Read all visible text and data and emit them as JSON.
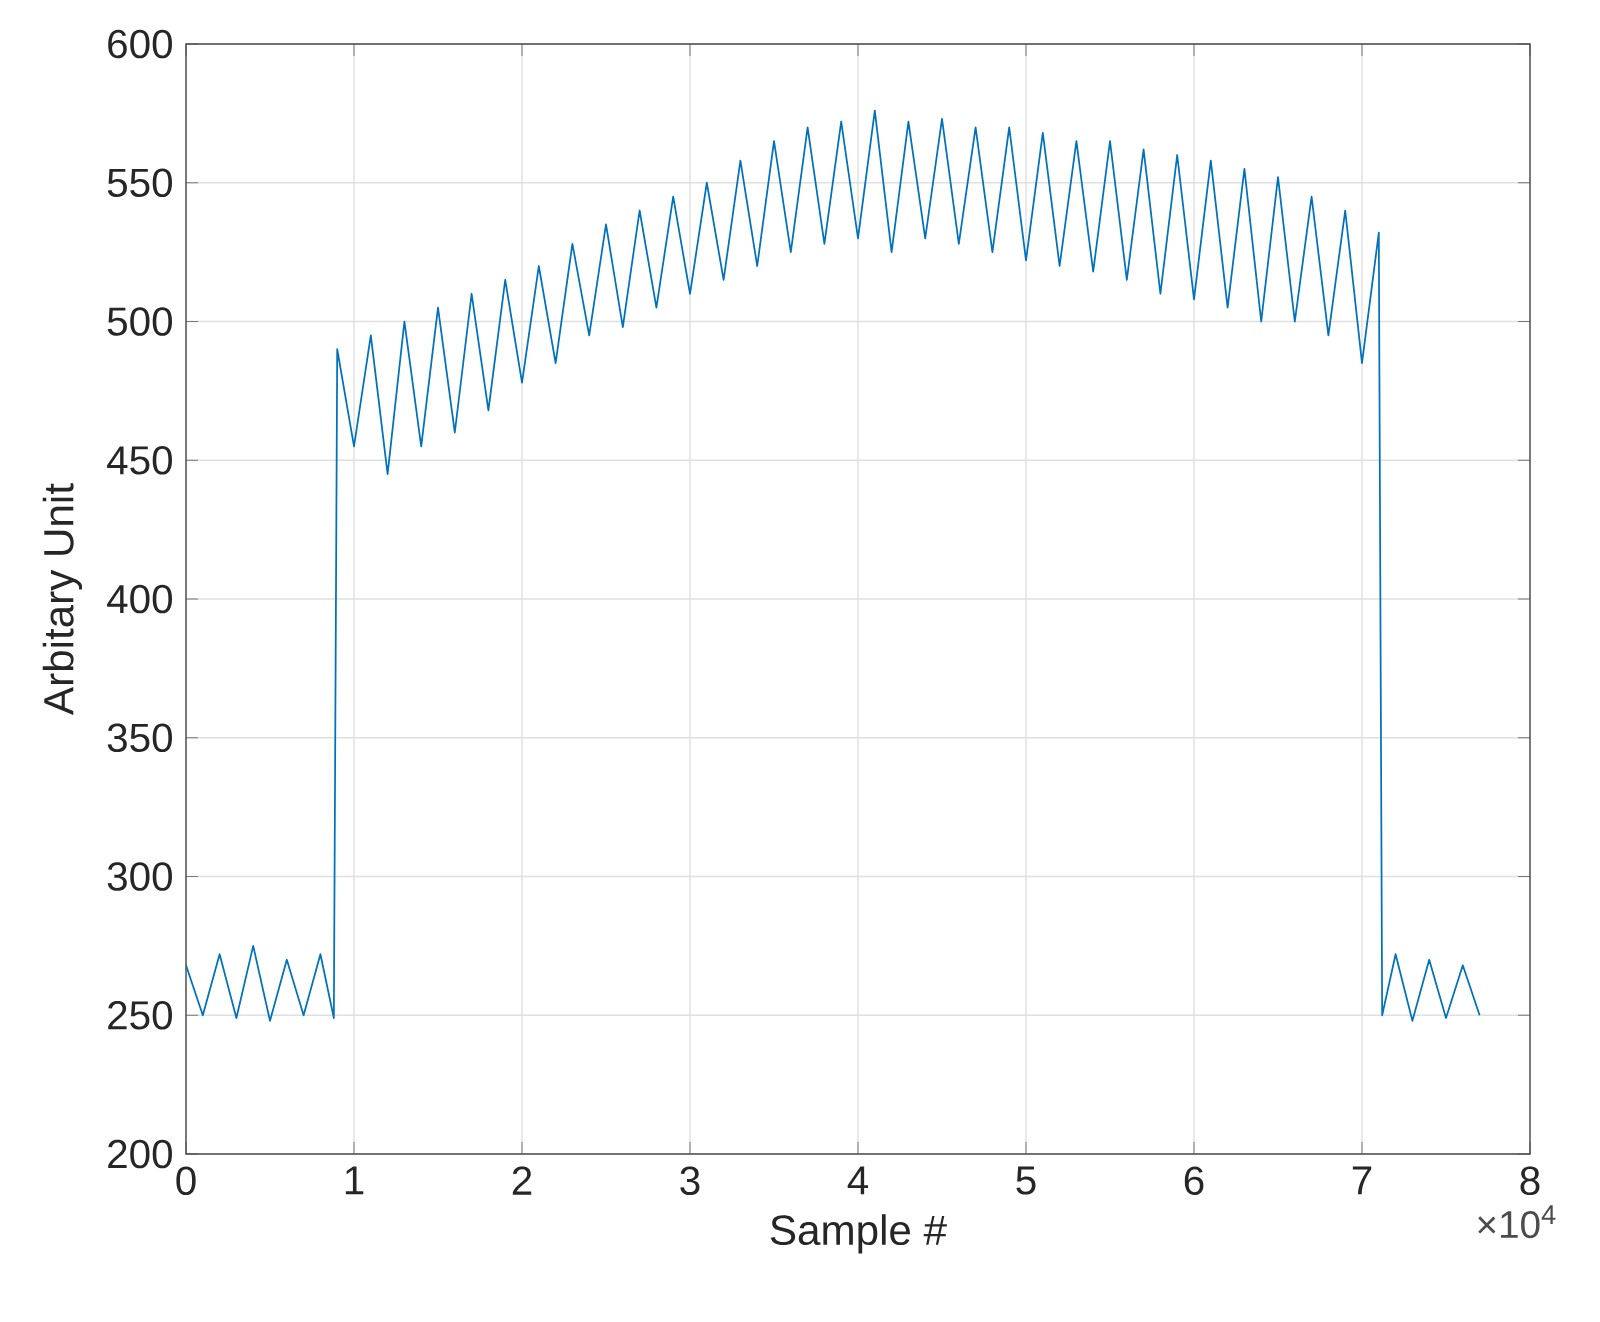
{
  "chart_data": {
    "type": "line",
    "xlabel": "Sample #",
    "ylabel": "Arbitary Unit",
    "annotations": [
      "×10$^{4}$"
    ],
    "xlim": [
      0,
      8
    ],
    "ylim": [
      200,
      600
    ],
    "xticks": [
      0,
      1,
      2,
      3,
      4,
      5,
      6,
      7,
      8
    ],
    "yticks": [
      200,
      250,
      300,
      350,
      400,
      450,
      500,
      550,
      600
    ],
    "grid": true,
    "series": [
      {
        "color": "#0072bd",
        "x": [
          0,
          0.1,
          0.2,
          0.3,
          0.4,
          0.5,
          0.6,
          0.7,
          0.8,
          0.88,
          0.9,
          1.0,
          1.1,
          1.2,
          1.3,
          1.4,
          1.5,
          1.6,
          1.7,
          1.8,
          1.9,
          2.0,
          2.1,
          2.2,
          2.3,
          2.4,
          2.5,
          2.6,
          2.7,
          2.8,
          2.9,
          3.0,
          3.1,
          3.2,
          3.3,
          3.4,
          3.5,
          3.6,
          3.7,
          3.8,
          3.9,
          4.0,
          4.1,
          4.2,
          4.3,
          4.4,
          4.5,
          4.6,
          4.7,
          4.8,
          4.9,
          5.0,
          5.1,
          5.2,
          5.3,
          5.4,
          5.5,
          5.6,
          5.7,
          5.8,
          5.9,
          6.0,
          6.1,
          6.2,
          6.3,
          6.4,
          6.5,
          6.6,
          6.7,
          6.8,
          6.9,
          7.0,
          7.1,
          7.12,
          7.2,
          7.3,
          7.4,
          7.5,
          7.6,
          7.7
        ],
        "values": [
          268,
          250,
          272,
          249,
          275,
          248,
          270,
          250,
          272,
          249,
          490,
          455,
          495,
          445,
          500,
          455,
          505,
          460,
          510,
          468,
          515,
          478,
          520,
          485,
          528,
          495,
          535,
          498,
          540,
          505,
          545,
          510,
          550,
          515,
          558,
          520,
          565,
          525,
          570,
          528,
          572,
          530,
          576,
          525,
          572,
          530,
          573,
          528,
          570,
          525,
          570,
          522,
          568,
          520,
          565,
          518,
          565,
          515,
          562,
          510,
          560,
          508,
          558,
          505,
          555,
          500,
          552,
          500,
          545,
          495,
          540,
          485,
          532,
          250,
          272,
          248,
          270,
          249,
          268,
          250
        ]
      }
    ]
  }
}
